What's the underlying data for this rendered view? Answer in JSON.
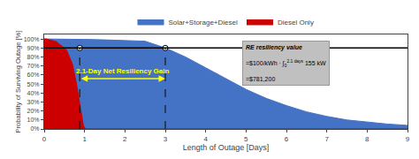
{
  "chart_data": {
    "type": "area",
    "xlabel": "Length of Outage [Days]",
    "ylabel": "Probability of Surviving Outage [%]",
    "xlim": [
      0,
      9
    ],
    "ylim": [
      0,
      1.05
    ],
    "xticks": [
      0,
      1,
      2,
      3,
      4,
      5,
      6,
      7,
      8,
      9
    ],
    "yticks": [
      {
        "value": 0,
        "label": "0%"
      },
      {
        "value": 0.1,
        "label": "10%"
      },
      {
        "value": 0.2,
        "label": "20%"
      },
      {
        "value": 0.3,
        "label": "30%"
      },
      {
        "value": 0.4,
        "label": "40%"
      },
      {
        "value": 0.5,
        "label": "50%"
      },
      {
        "value": 0.6,
        "label": "60%"
      },
      {
        "value": 0.7,
        "label": "70%"
      },
      {
        "value": 0.8,
        "label": "80%"
      },
      {
        "value": 0.9,
        "label": "90%"
      },
      {
        "value": 1.0,
        "label": "100%"
      }
    ],
    "grid": false,
    "legend": "top",
    "series": [
      {
        "name": "Solar+Storage+Diesel",
        "color": "#4472C4",
        "x": [
          0,
          0.5,
          1.0,
          1.5,
          2.0,
          2.5,
          3.0,
          3.5,
          4.0,
          4.5,
          5.0,
          5.5,
          6.0,
          6.5,
          7.0,
          7.5,
          8.0,
          8.5,
          9.0
        ],
        "values": [
          1.0,
          1.0,
          0.995,
          0.99,
          0.985,
          0.975,
          0.9,
          0.8,
          0.68,
          0.56,
          0.44,
          0.34,
          0.26,
          0.19,
          0.14,
          0.1,
          0.075,
          0.055,
          0.04
        ]
      },
      {
        "name": "Diesel Only",
        "color": "#CC0000",
        "x": [
          0,
          0.05,
          0.3,
          0.55,
          0.7,
          0.8,
          0.88,
          0.93,
          0.97,
          1.0,
          1.05,
          9
        ],
        "values": [
          1.0,
          1.0,
          0.97,
          0.88,
          0.72,
          0.5,
          0.28,
          0.12,
          0.04,
          0.01,
          0.0,
          0.0
        ]
      }
    ],
    "hline": {
      "y": 0.9,
      "color": "#000000"
    },
    "vlines": {
      "x": [
        0.88,
        3.0
      ],
      "color": "#1a1a1a",
      "line_style": "dashed",
      "marker": "circle"
    },
    "annotations": [
      {
        "text": "2.1-Day Net Resiliency Gain",
        "x": [
          0.88,
          3.0
        ],
        "y": 0.56,
        "color": "#FFFF00"
      }
    ],
    "info_box": {
      "title": "RE resiliency value",
      "formula": {
        "prefix": "=$100/kWh · ∫",
        "lower": "0",
        "upper": "2.1 days",
        "suffix": "155 kW"
      },
      "result": "=$781,200",
      "color": "#C0C0C0"
    }
  }
}
